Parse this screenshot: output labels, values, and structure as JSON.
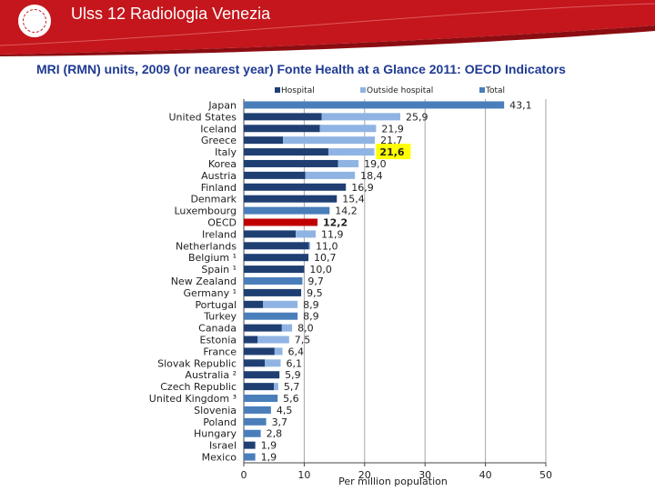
{
  "header": {
    "brand": "Ulss 12 Radiologia Venezia",
    "colors": {
      "red": "#c4161c",
      "dark_red": "#8b0d12"
    }
  },
  "title": "MRI (RMN) units, 2009 (or nearest year) Fonte Health at a Glance 2011: OECD Indicators",
  "chart_data": {
    "type": "bar",
    "orientation": "horizontal",
    "stacked": true,
    "legend": [
      "Hospital",
      "Outside hospital",
      "Total"
    ],
    "legend_position": "top",
    "colors": {
      "hospital": "#1f3f73",
      "outside": "#8fb4e3",
      "total": "#4a7ebb",
      "oecd": "#c00000",
      "highlight": "#ffff00"
    },
    "xlabel": "Per million population",
    "xlim": [
      0,
      50
    ],
    "xticks": [
      "0",
      "10",
      "20",
      "30",
      "40",
      "50"
    ],
    "grid": true,
    "categories": [
      "Japan",
      "United States",
      "Iceland",
      "Greece",
      "Italy",
      "Korea",
      "Austria",
      "Finland",
      "Denmark",
      "Luxembourg",
      "OECD",
      "Ireland",
      "Netherlands",
      "Belgium ¹",
      "Spain ¹",
      "New Zealand",
      "Germany ¹",
      "Portugal",
      "Turkey",
      "Canada",
      "Estonia",
      "France",
      "Slovak Republic",
      "Australia ²",
      "Czech Republic",
      "United Kingdom ³",
      "Slovenia",
      "Poland",
      "Hungary",
      "Israel",
      "Mexico"
    ],
    "series": [
      {
        "name": "Hospital",
        "values": [
          null,
          12.9,
          12.6,
          6.5,
          14.0,
          15.6,
          10.2,
          16.9,
          15.4,
          null,
          null,
          8.6,
          10.8,
          10.7,
          10.0,
          null,
          9.5,
          3.2,
          null,
          6.3,
          2.3,
          5.1,
          3.5,
          5.9,
          5.0,
          null,
          null,
          null,
          null,
          1.9,
          null
        ]
      },
      {
        "name": "Outside hospital",
        "values": [
          null,
          13.0,
          9.3,
          15.2,
          7.6,
          3.4,
          8.2,
          0,
          0,
          null,
          null,
          3.3,
          0.2,
          0,
          0,
          null,
          0,
          5.7,
          null,
          1.7,
          5.2,
          1.3,
          2.6,
          0,
          0.7,
          null,
          null,
          null,
          null,
          0,
          null
        ]
      },
      {
        "name": "Total",
        "values": [
          43.1,
          null,
          null,
          null,
          null,
          null,
          null,
          null,
          null,
          14.2,
          12.2,
          null,
          null,
          null,
          null,
          9.7,
          null,
          null,
          8.9,
          null,
          null,
          null,
          null,
          null,
          null,
          5.6,
          4.5,
          3.7,
          2.8,
          null,
          1.9
        ]
      }
    ],
    "labels": [
      "43,1",
      "25,9",
      "21,9",
      "21,7",
      "21,6",
      "19,0",
      "18,4",
      "16,9",
      "15,4",
      "14,2",
      "12,2",
      "11,9",
      "11,0",
      "10,7",
      "10,0",
      "9,7",
      "9,5",
      "8,9",
      "8,9",
      "8,0",
      "7,5",
      "6,4",
      "6,1",
      "5,9",
      "5,7",
      "5,6",
      "4,5",
      "3,7",
      "2,8",
      "1,9",
      "1,9"
    ],
    "highlight_label": "21,6",
    "bold_label": "12,2"
  }
}
